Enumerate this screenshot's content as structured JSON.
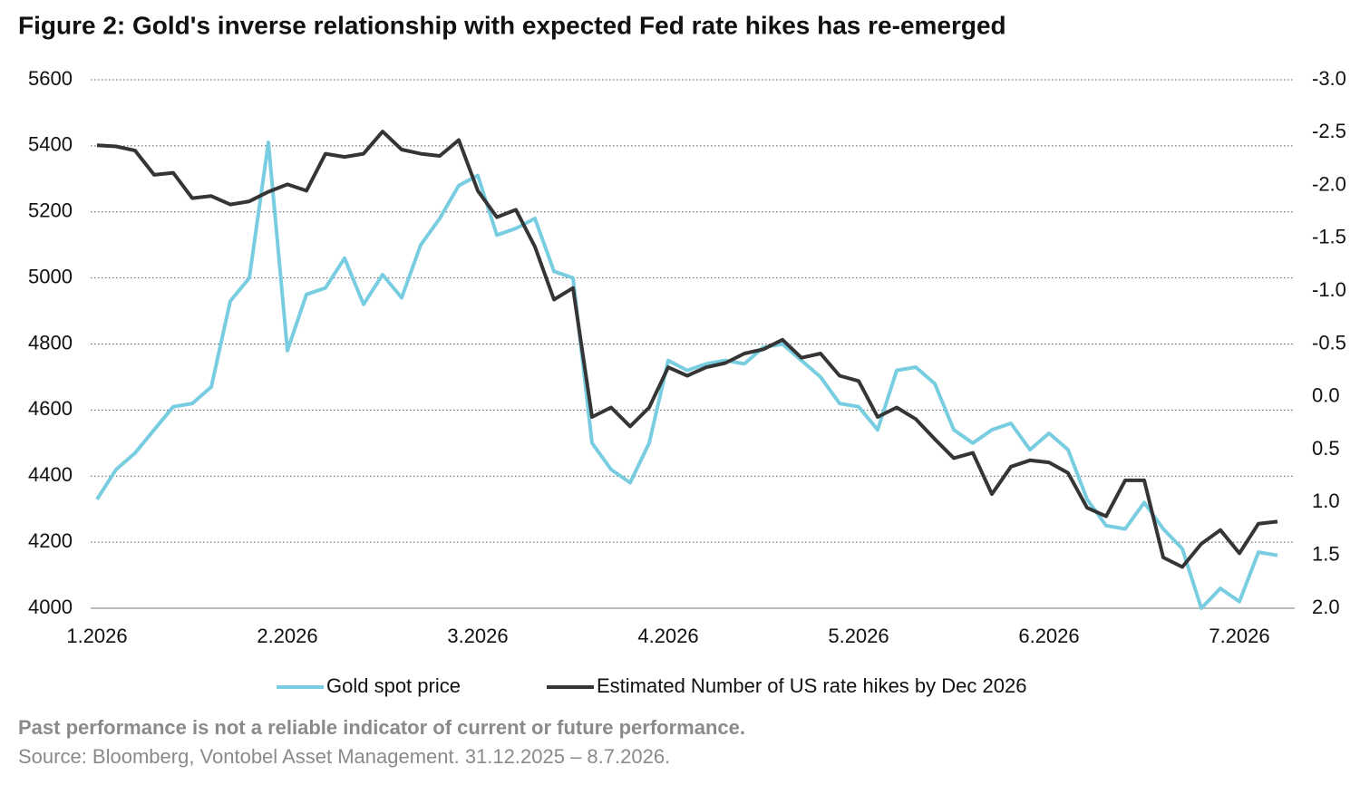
{
  "chart_data": {
    "type": "line",
    "title": "Figure 2: Gold's inverse relationship with expected Fed rate hikes has re-emerged",
    "notes": [
      "Past performance is not a reliable indicator of current or future performance.",
      "Source: Bloomberg, Vontobel Asset Management. 31.12.2025 – 8.7.2026."
    ],
    "categories": [
      "1.2026",
      null,
      null,
      null,
      null,
      null,
      null,
      null,
      null,
      null,
      "2.2026",
      null,
      null,
      null,
      null,
      null,
      null,
      null,
      null,
      null,
      "3.2026",
      null,
      null,
      null,
      null,
      null,
      null,
      null,
      null,
      null,
      "4.2026",
      null,
      null,
      null,
      null,
      null,
      null,
      null,
      null,
      null,
      "5.2026",
      null,
      null,
      null,
      null,
      null,
      null,
      null,
      null,
      null,
      "6.2026",
      null,
      null,
      null,
      null,
      null,
      null,
      null,
      null,
      null,
      "7.2026",
      null,
      null
    ],
    "series": [
      {
        "name": "Gold spot price",
        "color": "#79cde0",
        "axis": "y",
        "values": [
          4330,
          4420,
          4470,
          4540,
          4610,
          4620,
          4670,
          4930,
          5000,
          5410,
          4780,
          4950,
          4970,
          5060,
          4920,
          5010,
          4940,
          5100,
          5180,
          5280,
          5310,
          5130,
          5150,
          5180,
          5020,
          5000,
          4500,
          4420,
          4380,
          4500,
          4750,
          4720,
          4740,
          4750,
          4740,
          4790,
          4800,
          4750,
          4700,
          4620,
          4610,
          4540,
          4720,
          4730,
          4680,
          4540,
          4500,
          4540,
          4560,
          4480,
          4530,
          4480,
          4330,
          4250,
          4240,
          4320,
          4240,
          4180,
          4000,
          4060,
          4020,
          4170,
          4160
        ]
      },
      {
        "name": "Estimated Number of US rate hikes by Dec 2026",
        "color": "#353535",
        "axis": "y2",
        "values": [
          -2.38,
          -2.37,
          -2.33,
          -2.1,
          -2.12,
          -1.88,
          -1.9,
          -1.82,
          -1.85,
          -1.94,
          -2.01,
          -1.95,
          -2.3,
          -2.27,
          -2.3,
          -2.51,
          -2.34,
          -2.3,
          -2.28,
          -2.43,
          -1.95,
          -1.7,
          -1.77,
          -1.42,
          -0.92,
          -1.03,
          0.19,
          0.1,
          0.28,
          0.1,
          -0.28,
          -0.2,
          -0.28,
          -0.32,
          -0.41,
          -0.45,
          -0.54,
          -0.37,
          -0.41,
          -0.2,
          -0.15,
          0.19,
          0.1,
          0.21,
          0.4,
          0.58,
          0.53,
          0.92,
          0.66,
          0.6,
          0.62,
          0.72,
          1.05,
          1.13,
          0.79,
          0.79,
          1.52,
          1.61,
          1.39,
          1.26,
          1.48,
          1.2,
          1.18
        ]
      }
    ],
    "ylim": [
      4000,
      5600
    ],
    "yticks": [
      4000,
      4200,
      4400,
      4600,
      4800,
      5000,
      5200,
      5400,
      5600
    ],
    "y2lim": [
      2,
      -3
    ],
    "y2ticks": [
      {
        "value": 2,
        "label": "2.0"
      },
      1.5,
      {
        "value": 1,
        "label": "1.0"
      },
      0.5,
      {
        "value": 0,
        "label": "0.0"
      },
      -0.5,
      {
        "value": -1,
        "label": "-1.0"
      },
      -1.5,
      {
        "value": -2,
        "label": "-2.0"
      },
      -2.5,
      {
        "value": -3,
        "label": "-3.0"
      }
    ],
    "grid": true,
    "legend": "bottom"
  }
}
